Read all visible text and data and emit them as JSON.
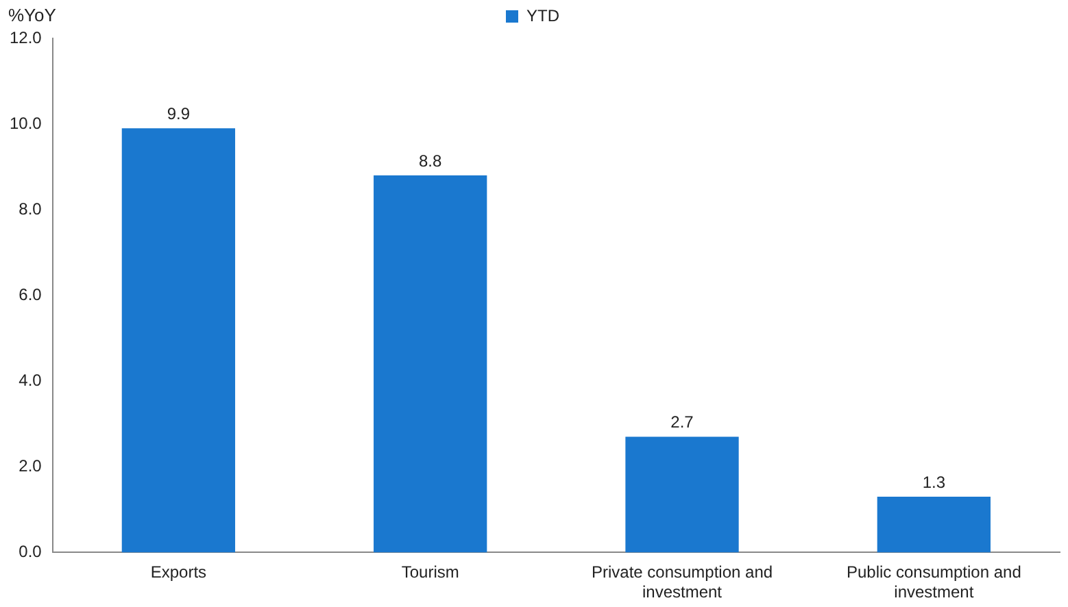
{
  "chart_data": {
    "type": "bar",
    "ylabel": "%YoY",
    "categories": [
      "Exports",
      "Tourism",
      "Private consumption and investment",
      "Public consumption and investment"
    ],
    "series": [
      {
        "name": "YTD",
        "color": "#1a78cf",
        "values": [
          9.9,
          8.8,
          2.7,
          1.3
        ]
      }
    ],
    "ylim": [
      0,
      12
    ],
    "yticks": [
      {
        "value": 0,
        "label": "0.0"
      },
      {
        "value": 2,
        "label": "2.0"
      },
      {
        "value": 4,
        "label": "4.0"
      },
      {
        "value": 6,
        "label": "6.0"
      },
      {
        "value": 8,
        "label": "8.0"
      },
      {
        "value": 10,
        "label": "10.0"
      },
      {
        "value": 12,
        "label": "12.0"
      }
    ],
    "grid": false,
    "legend": "top",
    "data_labels": true
  }
}
